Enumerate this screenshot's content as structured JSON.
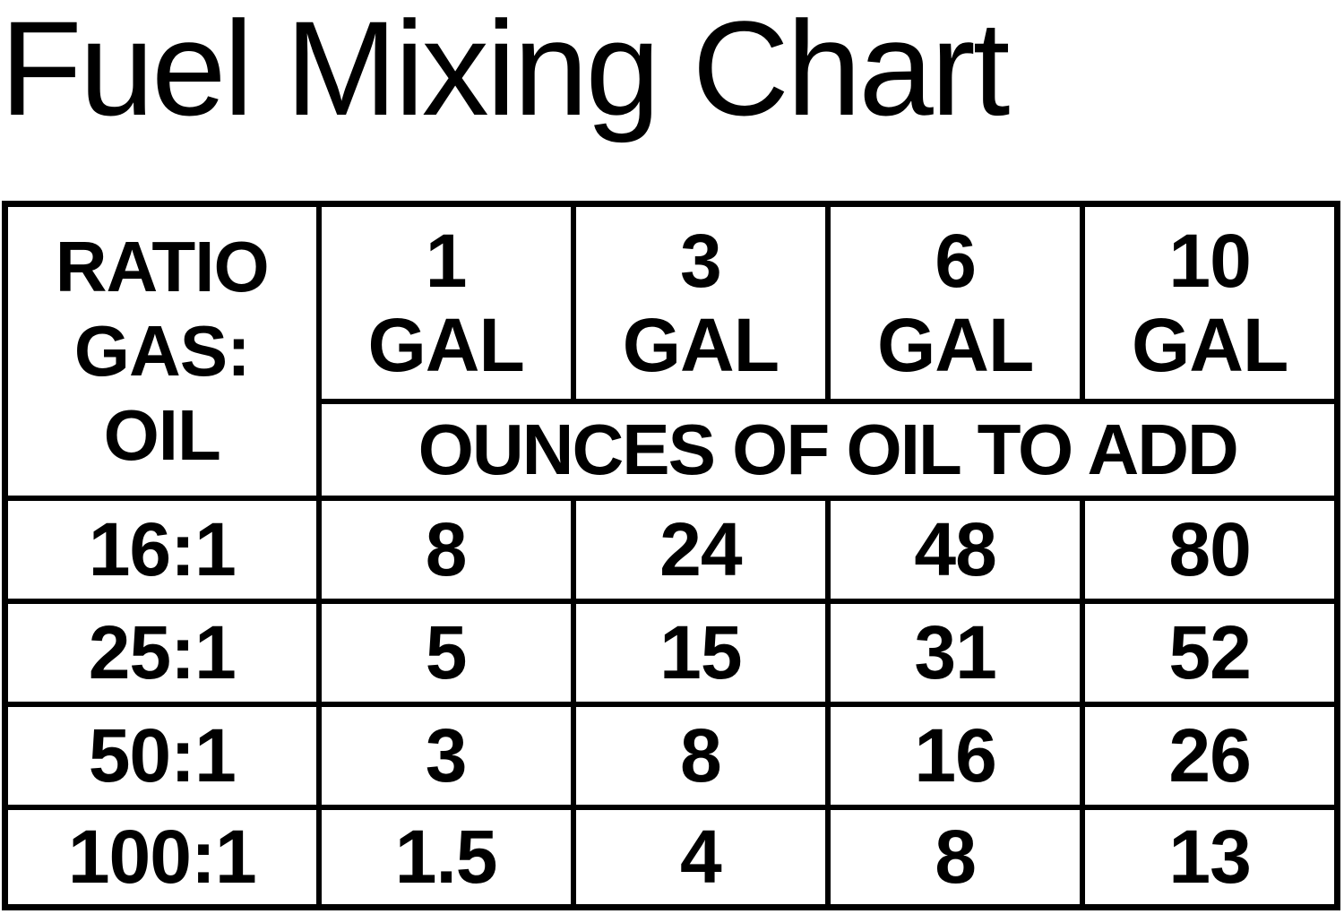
{
  "title": "Fuel Mixing Chart",
  "header": {
    "ratio_lines": [
      "RATIO",
      "GAS:",
      "OIL"
    ],
    "columns": [
      {
        "amount": "1",
        "unit": "GAL"
      },
      {
        "amount": "3",
        "unit": "GAL"
      },
      {
        "amount": "6",
        "unit": "GAL"
      },
      {
        "amount": "10",
        "unit": "GAL"
      }
    ],
    "subheader": "OUNCES OF OIL TO ADD"
  },
  "rows": [
    {
      "ratio": "16:1",
      "values": [
        "8",
        "24",
        "48",
        "80"
      ]
    },
    {
      "ratio": "25:1",
      "values": [
        "5",
        "15",
        "31",
        "52"
      ]
    },
    {
      "ratio": "50:1",
      "values": [
        "3",
        "8",
        "16",
        "26"
      ]
    },
    {
      "ratio": "100:1",
      "values": [
        "1.5",
        "4",
        "8",
        "13"
      ]
    }
  ]
}
